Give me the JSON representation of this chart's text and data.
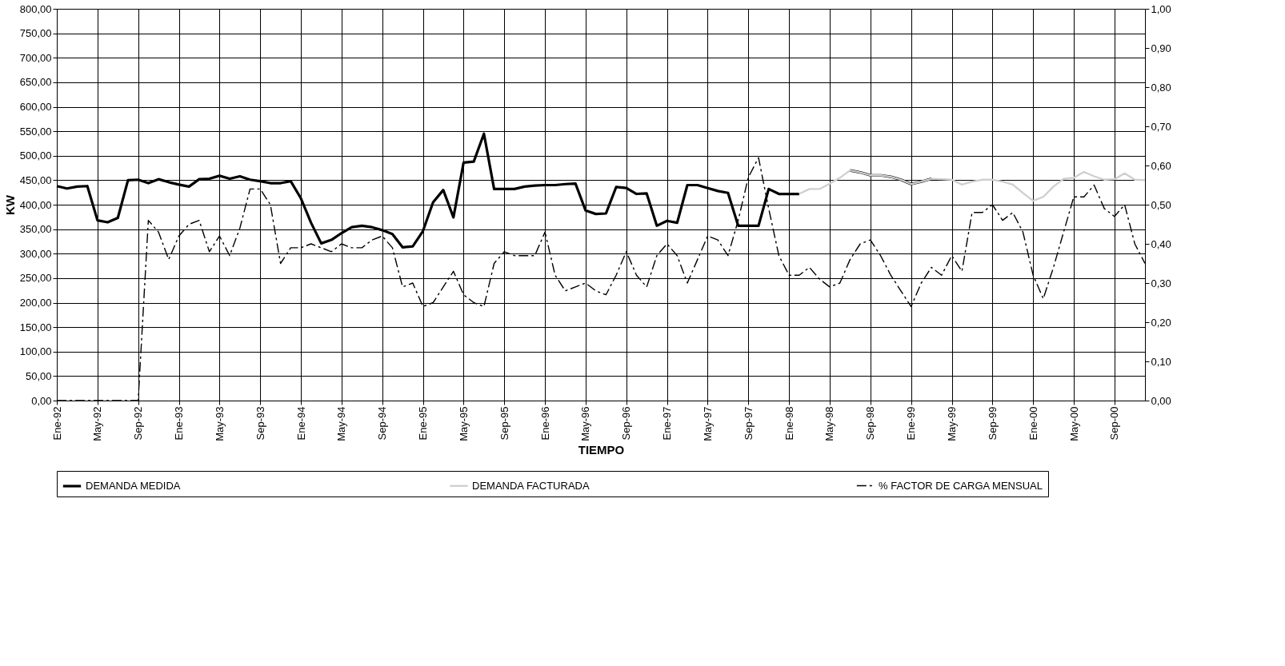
{
  "chart_data": {
    "type": "line",
    "xlabel": "TIEMPO",
    "ylabel": "KW",
    "categories": [
      "Ene-92",
      null,
      null,
      null,
      "May-92",
      null,
      null,
      null,
      "Sep-92",
      null,
      null,
      null,
      "Ene-93",
      null,
      null,
      null,
      "May-93",
      null,
      null,
      null,
      "Sep-93",
      null,
      null,
      null,
      "Ene-94",
      null,
      null,
      null,
      "May-94",
      null,
      null,
      null,
      "Sep-94",
      null,
      null,
      null,
      "Ene-95",
      null,
      null,
      null,
      "May-95",
      null,
      null,
      null,
      "Sep-95",
      null,
      null,
      null,
      "Ene-96",
      null,
      null,
      null,
      "May-96",
      null,
      null,
      null,
      "Sep-96",
      null,
      null,
      null,
      "Ene-97",
      null,
      null,
      null,
      "May-97",
      null,
      null,
      null,
      "Sep-97",
      null,
      null,
      null,
      "Ene-98",
      null,
      null,
      null,
      "May-98",
      null,
      null,
      null,
      "Sep-98",
      null,
      null,
      null,
      "Ene-99",
      null,
      null,
      null,
      "May-99",
      null,
      null,
      null,
      "Sep-99",
      null,
      null,
      null,
      "Ene-00",
      null,
      null,
      null,
      "May-00",
      null,
      null,
      null,
      "Sep-00",
      null,
      null,
      null
    ],
    "series": [
      {
        "name": "DEMANDA MEDIDA",
        "color": "#000000",
        "line_style": "solid",
        "values": [
          438,
          433,
          437,
          438,
          368,
          364,
          373,
          450,
          451,
          444,
          452,
          446,
          441,
          437,
          452,
          453,
          459,
          453,
          458,
          451,
          448,
          444,
          444,
          448,
          413,
          363,
          321,
          328,
          342,
          354,
          357,
          354,
          348,
          340,
          313,
          315,
          346,
          405,
          430,
          374,
          486,
          488,
          545,
          432,
          432,
          432,
          437,
          439,
          440,
          440,
          442,
          443,
          388,
          381,
          382,
          436,
          434,
          422,
          423,
          357,
          367,
          363,
          440,
          440,
          434,
          428,
          424,
          357,
          357,
          357,
          432,
          422,
          422,
          422,
          null,
          null,
          null,
          null,
          470,
          466,
          460,
          460,
          457,
          451,
          442,
          447,
          453,
          null,
          null,
          null,
          null,
          null,
          null,
          null,
          null,
          null,
          null,
          null,
          null,
          null,
          null,
          null,
          null,
          null,
          null,
          null,
          null,
          null
        ]
      },
      {
        "name": "DEMANDA FACTURADA",
        "color": "#cfcfcf",
        "line_style": "solid",
        "values": [
          null,
          null,
          null,
          null,
          null,
          null,
          null,
          null,
          null,
          null,
          null,
          null,
          null,
          null,
          null,
          null,
          null,
          null,
          null,
          null,
          null,
          null,
          null,
          null,
          null,
          null,
          null,
          null,
          null,
          null,
          null,
          null,
          null,
          null,
          null,
          null,
          null,
          null,
          null,
          null,
          null,
          null,
          null,
          null,
          null,
          null,
          null,
          null,
          null,
          null,
          null,
          null,
          null,
          null,
          null,
          null,
          null,
          null,
          null,
          null,
          null,
          null,
          null,
          null,
          null,
          null,
          null,
          null,
          null,
          null,
          null,
          null,
          null,
          422,
          432,
          432,
          443,
          455,
          470,
          466,
          460,
          460,
          457,
          451,
          442,
          447,
          453,
          452,
          451,
          441,
          447,
          451,
          451,
          447,
          441,
          424,
          408,
          416,
          437,
          453,
          455,
          467,
          458,
          451,
          452,
          464,
          451,
          450
        ]
      },
      {
        "name": "% FACTOR DE CARGA MENSUAL",
        "color": "#000000",
        "line_style": "dashed",
        "axis": "y2",
        "values": [
          0,
          0,
          0,
          0,
          0,
          0,
          0,
          0,
          0,
          0.46,
          0.43,
          0.36,
          0.42,
          0.45,
          0.46,
          0.38,
          0.42,
          0.37,
          0.44,
          0.54,
          0.54,
          0.5,
          0.35,
          0.39,
          0.39,
          0.4,
          0.39,
          0.38,
          0.4,
          0.39,
          0.39,
          0.41,
          0.42,
          0.39,
          0.29,
          0.3,
          0.24,
          0.25,
          0.29,
          0.33,
          0.27,
          0.25,
          0.24,
          0.35,
          0.38,
          0.37,
          0.37,
          0.37,
          0.43,
          0.32,
          0.28,
          0.29,
          0.3,
          0.28,
          0.27,
          0.32,
          0.38,
          0.32,
          0.29,
          0.37,
          0.4,
          0.37,
          0.3,
          0.36,
          0.42,
          0.41,
          0.37,
          0.46,
          0.57,
          0.62,
          0.49,
          0.37,
          0.32,
          0.32,
          0.34,
          0.31,
          0.29,
          0.3,
          0.36,
          0.4,
          0.41,
          0.37,
          0.32,
          0.28,
          0.24,
          0.3,
          0.34,
          0.32,
          0.37,
          0.33,
          0.48,
          0.48,
          0.5,
          0.46,
          0.48,
          0.43,
          0.32,
          0.26,
          0.34,
          0.43,
          0.52,
          0.52,
          0.55,
          0.49,
          0.47,
          0.5,
          0.4,
          0.35
        ]
      }
    ],
    "ylim": [
      0,
      800
    ],
    "yticks": [
      {
        "value": 0,
        "label": "0,00"
      },
      {
        "value": 50,
        "label": "50,00"
      },
      {
        "value": 100,
        "label": "100,00"
      },
      {
        "value": 150,
        "label": "150,00"
      },
      {
        "value": 200,
        "label": "200,00"
      },
      {
        "value": 250,
        "label": "250,00"
      },
      {
        "value": 300,
        "label": "300,00"
      },
      {
        "value": 350,
        "label": "350,00"
      },
      {
        "value": 400,
        "label": "400,00"
      },
      {
        "value": 450,
        "label": "450,00"
      },
      {
        "value": 500,
        "label": "500,00"
      },
      {
        "value": 550,
        "label": "550,00"
      },
      {
        "value": 600,
        "label": "600,00"
      },
      {
        "value": 650,
        "label": "650,00"
      },
      {
        "value": 700,
        "label": "700,00"
      },
      {
        "value": 750,
        "label": "750,00"
      },
      {
        "value": 800,
        "label": "800,00"
      }
    ],
    "y2lim": [
      0,
      1
    ],
    "y2ticks": [
      {
        "value": 0,
        "label": "0,00"
      },
      {
        "value": 0.1,
        "label": "0,10"
      },
      {
        "value": 0.2,
        "label": "0,20"
      },
      {
        "value": 0.3,
        "label": "0,30"
      },
      {
        "value": 0.4,
        "label": "0,40"
      },
      {
        "value": 0.5,
        "label": "0,50"
      },
      {
        "value": 0.6,
        "label": "0,60"
      },
      {
        "value": 0.7,
        "label": "0,70"
      },
      {
        "value": 0.8,
        "label": "0,80"
      },
      {
        "value": 0.9,
        "label": "0,90"
      },
      {
        "value": 1,
        "label": "1,00"
      }
    ],
    "grid": true,
    "legend": "bottom"
  }
}
